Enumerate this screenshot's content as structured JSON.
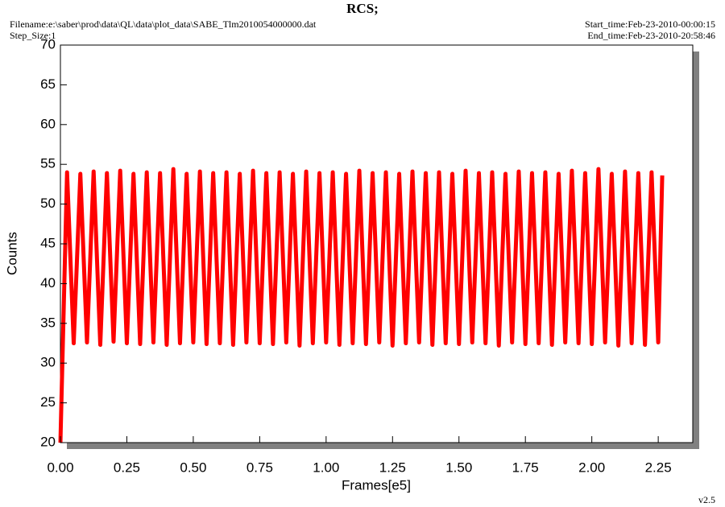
{
  "chart_data": {
    "type": "line",
    "title": "RCS;",
    "filename": "Filename:e:\\saber\\prod\\data\\QL\\data\\plot_data\\SABE_Tlm2010054000000.dat",
    "step_size": "Step_Size:1",
    "start_time": "Start_time:Feb-23-2010-00:00:15",
    "end_time": "End_time:Feb-23-2010-20:58:46",
    "version": "v2.5",
    "x_label": "Frames[e5]",
    "y_label": "Counts",
    "xlim": [
      0,
      2.38
    ],
    "ylim": [
      20,
      70
    ],
    "xticks": [
      {
        "value": 0,
        "label": "0.00"
      },
      0.25,
      {
        "value": 0.5,
        "label": "0.50"
      },
      0.75,
      {
        "value": 1,
        "label": "1.00"
      },
      1.25,
      {
        "value": 1.5,
        "label": "1.50"
      },
      1.75,
      {
        "value": 2,
        "label": "2.00"
      },
      2.25
    ],
    "yticks": [
      20,
      25,
      30,
      35,
      40,
      45,
      50,
      55,
      60,
      65,
      70
    ],
    "series": [
      {
        "color": "#ff0000",
        "x": [
          0,
          0.025,
          0.05,
          0.075,
          0.1,
          0.125,
          0.15,
          0.175,
          0.2,
          0.225,
          0.25,
          0.275,
          0.3,
          0.325,
          0.35,
          0.375,
          0.4,
          0.425,
          0.45,
          0.475,
          0.5,
          0.525,
          0.55,
          0.575,
          0.6,
          0.625,
          0.65,
          0.675,
          0.7,
          0.725,
          0.75,
          0.775,
          0.8,
          0.825,
          0.85,
          0.875,
          0.9,
          0.925,
          0.95,
          0.975,
          1,
          1.025,
          1.05,
          1.075,
          1.1,
          1.125,
          1.15,
          1.175,
          1.2,
          1.225,
          1.25,
          1.275,
          1.3,
          1.325,
          1.35,
          1.375,
          1.4,
          1.425,
          1.45,
          1.475,
          1.5,
          1.525,
          1.55,
          1.575,
          1.6,
          1.625,
          1.65,
          1.675,
          1.7,
          1.725,
          1.75,
          1.775,
          1.8,
          1.825,
          1.85,
          1.875,
          1.9,
          1.925,
          1.95,
          1.975,
          2,
          2.025,
          2.05,
          2.075,
          2.1,
          2.125,
          2.15,
          2.175,
          2.2,
          2.225,
          2.25,
          2.265
        ],
        "values": [
          20,
          54,
          32.5,
          53.8,
          32.6,
          54.1,
          32.3,
          53.9,
          32.7,
          54.2,
          32.5,
          53.8,
          32.4,
          54,
          32.6,
          53.9,
          32.3,
          54.4,
          32.5,
          53.8,
          32.6,
          54.1,
          32.4,
          53.9,
          32.5,
          54,
          32.3,
          53.8,
          32.6,
          54.2,
          32.5,
          53.9,
          32.4,
          54,
          32.6,
          53.8,
          32.2,
          54.1,
          32.5,
          53.9,
          32.6,
          54,
          32.3,
          53.8,
          32.5,
          54.2,
          32.4,
          53.9,
          32.6,
          54,
          32.2,
          53.8,
          32.5,
          54.1,
          32.6,
          53.9,
          32.3,
          54,
          32.5,
          53.8,
          32.4,
          54.2,
          32.6,
          53.9,
          32.5,
          54,
          32.2,
          53.8,
          32.6,
          54.1,
          32.4,
          53.9,
          32.5,
          54,
          32.3,
          53.8,
          32.6,
          54.2,
          32.5,
          53.9,
          32.4,
          54.4,
          32.6,
          53.8,
          32.2,
          54.1,
          32.5,
          53.9,
          32.3,
          54,
          32.6,
          53.6
        ]
      }
    ]
  }
}
